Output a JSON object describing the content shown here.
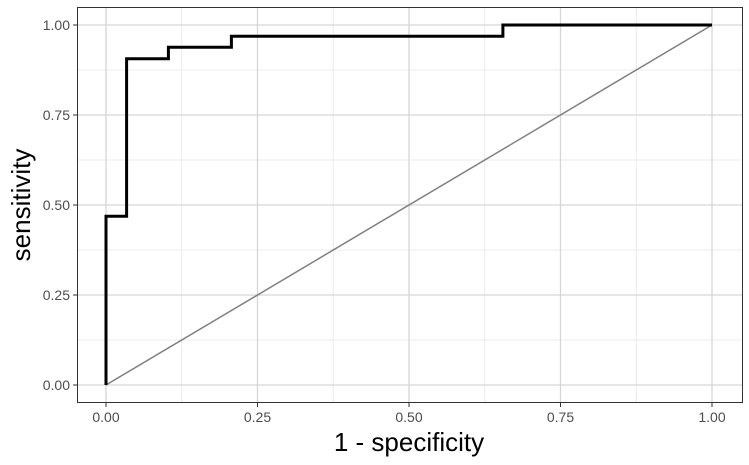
{
  "chart_data": {
    "type": "line",
    "title": "",
    "xlabel": "1 - specificity",
    "ylabel": "sensitivity",
    "xlim": [
      0,
      1
    ],
    "ylim": [
      0,
      1
    ],
    "grid": true,
    "legend": "none",
    "x_ticks": [
      {
        "value": 0.0,
        "label": "0.00"
      },
      {
        "value": 0.25,
        "label": "0.25"
      },
      {
        "value": 0.5,
        "label": "0.50"
      },
      {
        "value": 0.75,
        "label": "0.75"
      },
      {
        "value": 1.0,
        "label": "1.00"
      }
    ],
    "y_ticks": [
      {
        "value": 0.0,
        "label": "0.00"
      },
      {
        "value": 0.25,
        "label": "0.25"
      },
      {
        "value": 0.5,
        "label": "0.50"
      },
      {
        "value": 0.75,
        "label": "0.75"
      },
      {
        "value": 1.0,
        "label": "1.00"
      }
    ],
    "series": [
      {
        "style": "step",
        "color": "#000000",
        "points": [
          {
            "x": 0.0,
            "y": 0.0
          },
          {
            "x": 0.0,
            "y": 0.469
          },
          {
            "x": 0.034,
            "y": 0.469
          },
          {
            "x": 0.034,
            "y": 0.906
          },
          {
            "x": 0.103,
            "y": 0.906
          },
          {
            "x": 0.103,
            "y": 0.938
          },
          {
            "x": 0.207,
            "y": 0.938
          },
          {
            "x": 0.207,
            "y": 0.969
          },
          {
            "x": 0.655,
            "y": 0.969
          },
          {
            "x": 0.655,
            "y": 1.0
          },
          {
            "x": 1.0,
            "y": 1.0
          }
        ]
      }
    ],
    "reference_line": {
      "color": "#808080",
      "points": [
        {
          "x": 0.0,
          "y": 0.0
        },
        {
          "x": 1.0,
          "y": 1.0
        }
      ]
    },
    "colors": {
      "background": "#ffffff",
      "panel_border": "#333333",
      "grid_major": "#d6d6d6",
      "grid_minor": "#ececec",
      "tick_text": "#4d4d4d",
      "axis_title": "#000000"
    }
  }
}
